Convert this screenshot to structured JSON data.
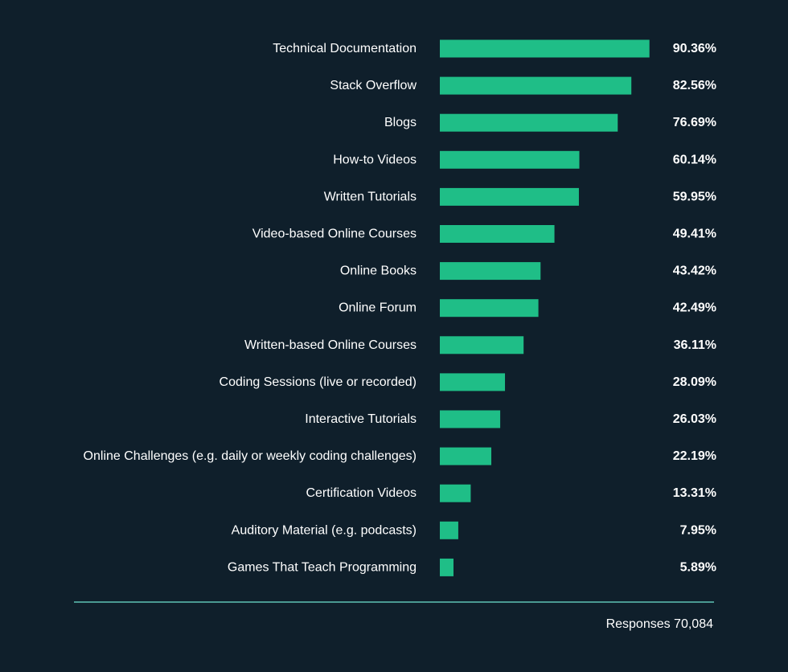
{
  "chart_data": {
    "type": "bar",
    "orientation": "horizontal",
    "categories": [
      "Technical Documentation",
      "Stack Overflow",
      "Blogs",
      "How-to Videos",
      "Written Tutorials",
      "Video-based Online Courses",
      "Online Books",
      "Online Forum",
      "Written-based Online Courses",
      "Coding Sessions (live or recorded)",
      "Interactive Tutorials",
      "Online Challenges (e.g. daily or weekly coding challenges)",
      "Certification Videos",
      "Auditory Material (e.g. podcasts)",
      "Games That Teach Programming"
    ],
    "values": [
      90.36,
      82.56,
      76.69,
      60.14,
      59.95,
      49.41,
      43.42,
      42.49,
      36.11,
      28.09,
      26.03,
      22.19,
      13.31,
      7.95,
      5.89
    ],
    "value_labels": [
      "90.36%",
      "82.56%",
      "76.69%",
      "60.14%",
      "59.95%",
      "49.41%",
      "43.42%",
      "42.49%",
      "36.11%",
      "28.09%",
      "26.03%",
      "22.19%",
      "13.31%",
      "7.95%",
      "5.89%"
    ],
    "xlim": [
      0,
      100
    ],
    "unit": "%",
    "bar_color": "#1fbe87",
    "rule_color": "#5fc3b4",
    "text_color": "#ffffff",
    "background": "#0f1f2b"
  },
  "footer": {
    "responses_text": "Responses 70,084"
  }
}
